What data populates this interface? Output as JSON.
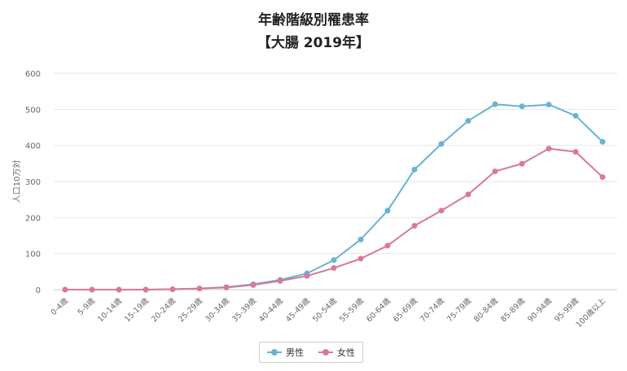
{
  "title": "年齢階級別罹患率",
  "subtitle": "【大腸 2019年】",
  "colors": {
    "male": "#6ab3d3",
    "female": "#d9789b"
  },
  "chart_data": {
    "type": "line",
    "categories": [
      "0-4歳",
      "5-9歳",
      "10-14歳",
      "15-19歳",
      "20-24歳",
      "25-29歳",
      "30-34歳",
      "35-39歳",
      "40-44歳",
      "45-49歳",
      "50-54歳",
      "55-59歳",
      "60-64歳",
      "65-69歳",
      "70-74歳",
      "75-79歳",
      "80-84歳",
      "85-89歳",
      "90-94歳",
      "95-99歳",
      "100歳以上"
    ],
    "ylabel": "人口10万対",
    "ylim": [
      0,
      600
    ],
    "yticks": [
      "0",
      "100",
      "200",
      "300",
      "400",
      "500",
      "600"
    ],
    "grid": true,
    "legend_position": "bottom",
    "series": [
      {
        "name": "男性",
        "values": [
          0,
          0,
          0,
          0,
          1,
          3,
          7,
          15,
          27,
          45,
          82,
          139,
          219,
          333,
          404,
          468,
          514,
          508,
          513,
          482,
          410
        ]
      },
      {
        "name": "女性",
        "values": [
          0,
          0,
          0,
          0,
          1,
          3,
          6,
          13,
          24,
          38,
          60,
          86,
          122,
          177,
          219,
          264,
          328,
          349,
          391,
          382,
          312
        ]
      }
    ]
  }
}
